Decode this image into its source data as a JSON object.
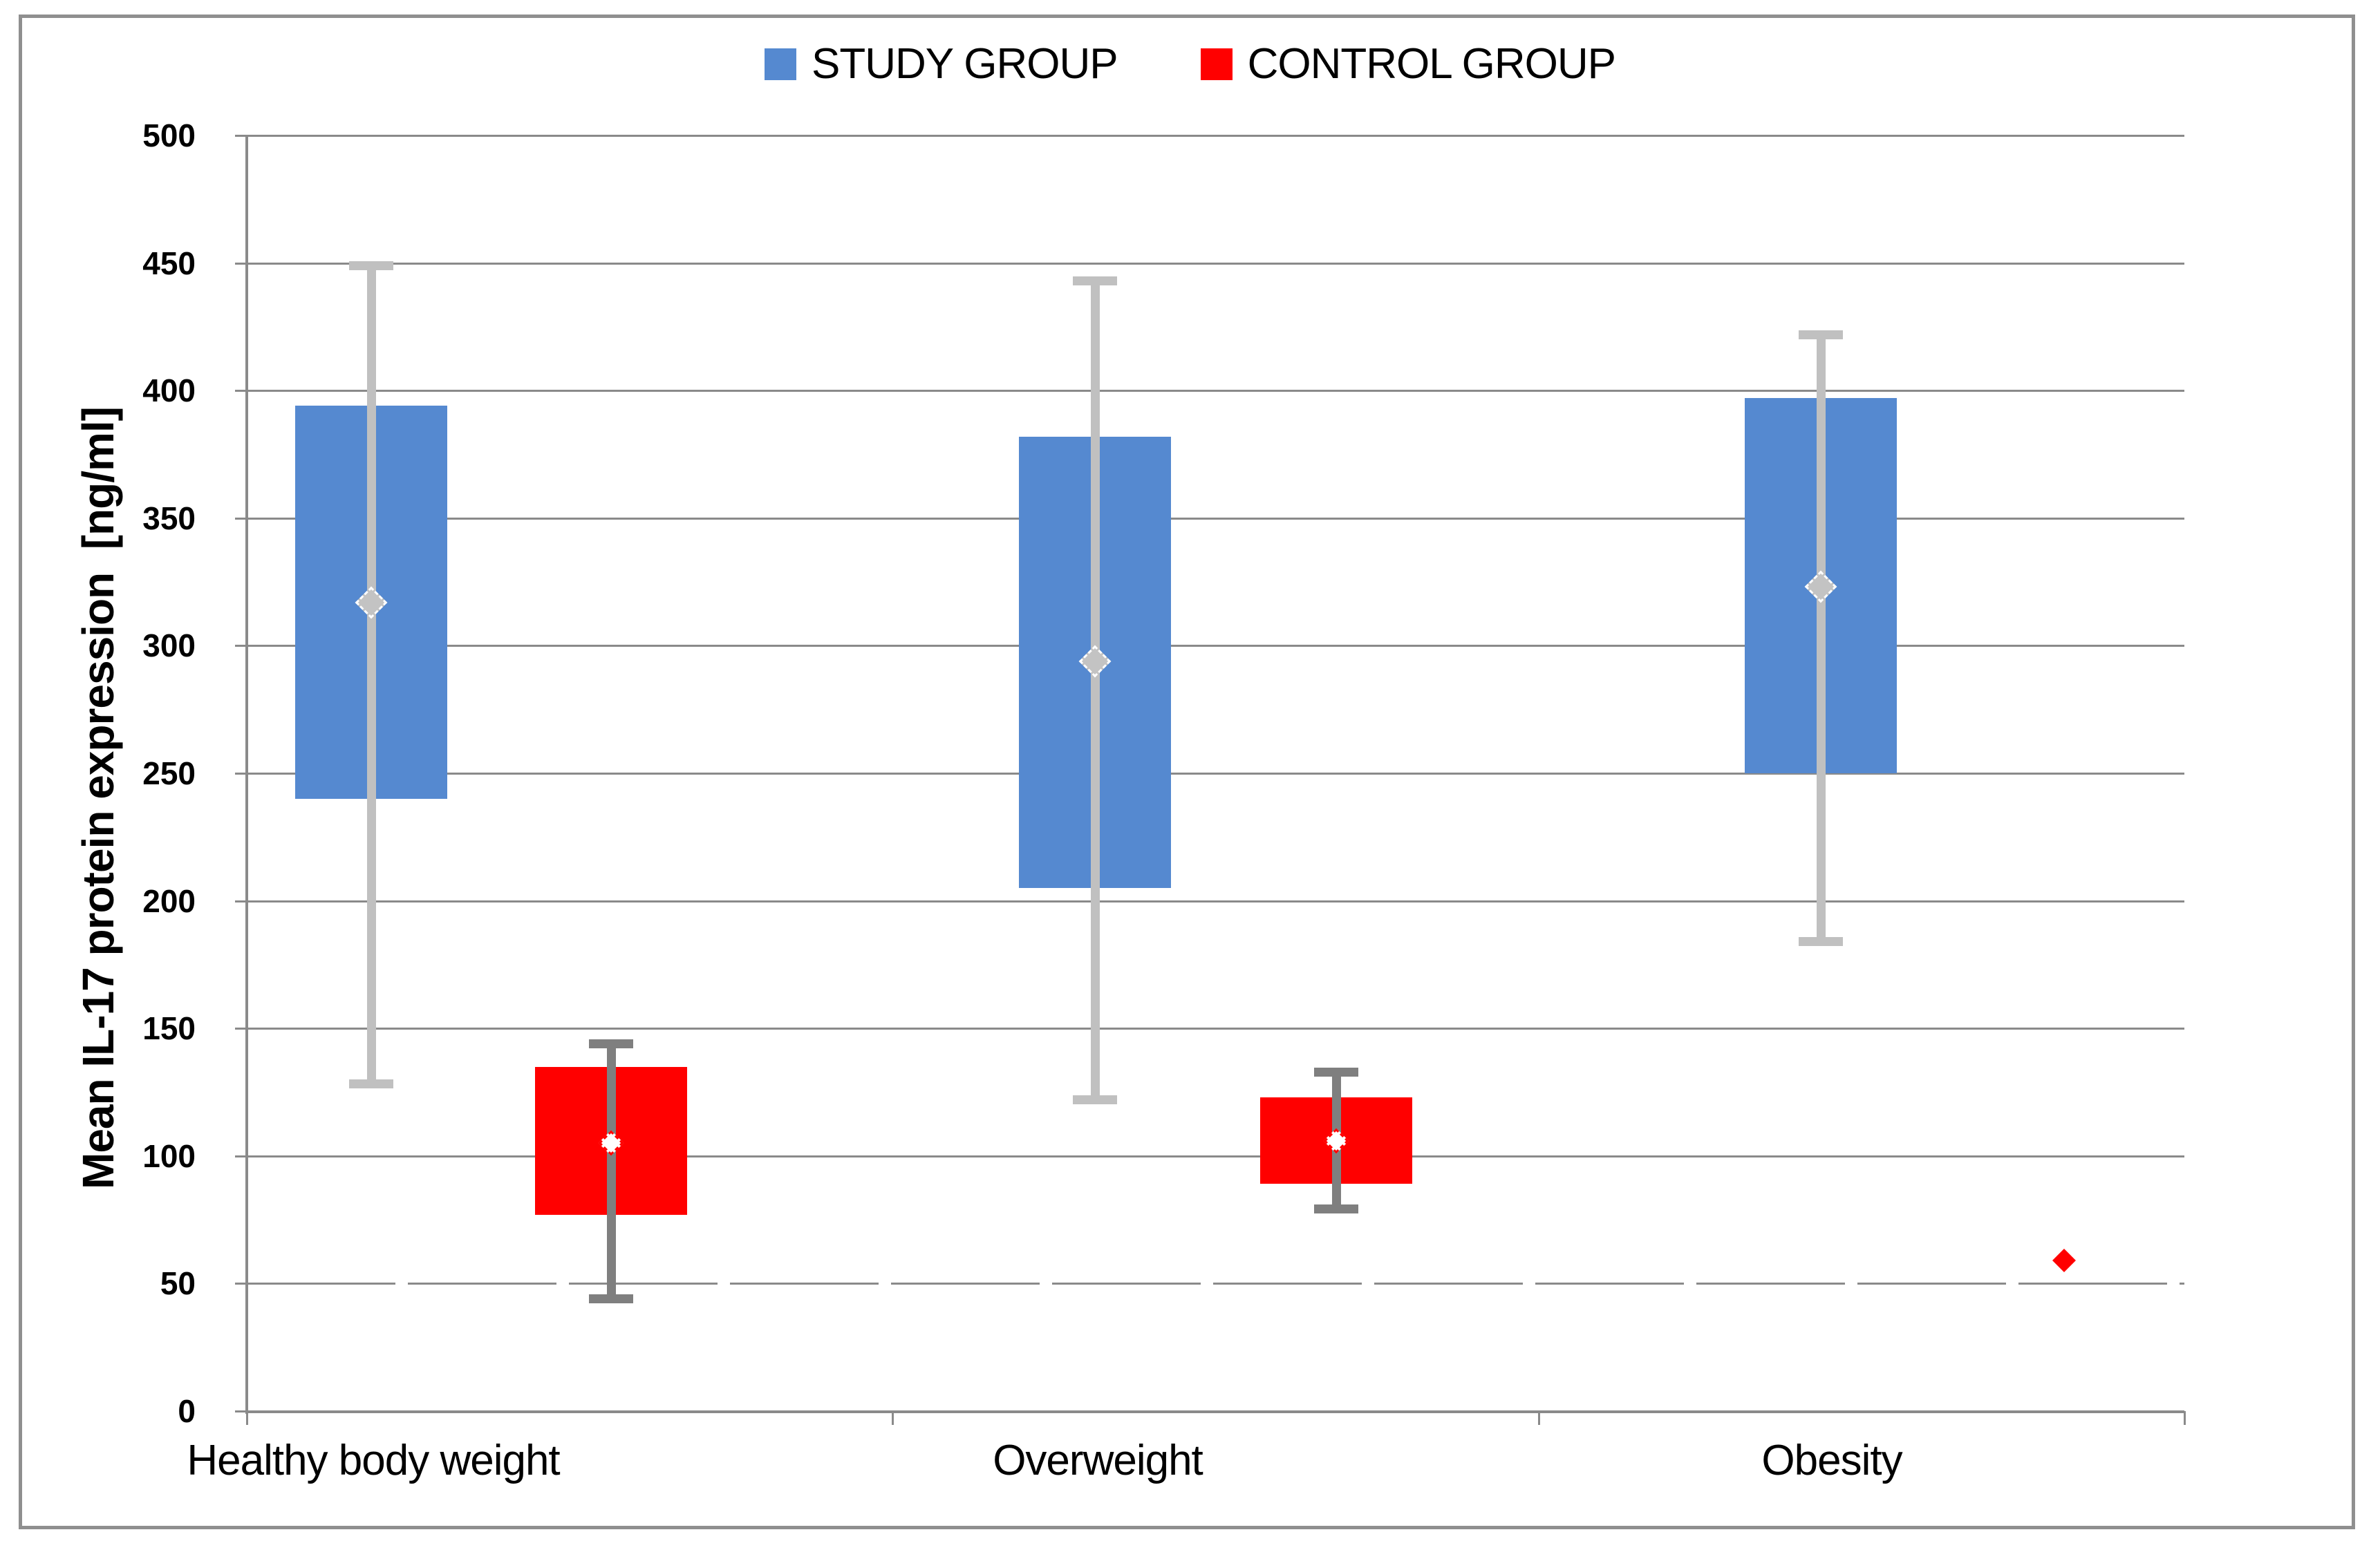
{
  "legend": {
    "items": [
      {
        "label": "STUDY GROUP",
        "color": "#5589d0"
      },
      {
        "label": "CONTROL GROUP",
        "color": "#ff0000"
      }
    ]
  },
  "y_axis": {
    "title": "Mean IL-17 protein expression  [ng/ml]",
    "min": 0,
    "max": 500,
    "step": 50,
    "tick_labels": [
      "500",
      "450",
      "400",
      "350",
      "300",
      "250",
      "200",
      "150",
      "100",
      "50",
      "0"
    ],
    "dashed_gridline_value": 50
  },
  "x_axis": {
    "categories": [
      "Healthy body weight",
      "Overweight",
      "Obesity"
    ]
  },
  "chart_data": {
    "type": "box",
    "title": "",
    "ylabel": "Mean IL-17 protein expression [ng/ml]",
    "ylim": [
      0,
      500
    ],
    "grid": true,
    "legend_position": "top-center",
    "categories": [
      "Healthy body weight",
      "Overweight",
      "Obesity"
    ],
    "series": [
      {
        "name": "STUDY GROUP",
        "box_color": "#5589d0",
        "whisker_color": "#c0c0c0",
        "mean_marker": "gray diamond with dashed white outline",
        "boxes": [
          {
            "category": "Healthy body weight",
            "box_low": 240,
            "box_high": 394,
            "mean": 317,
            "whisker_low": 128,
            "whisker_high": 449
          },
          {
            "category": "Overweight",
            "box_low": 205,
            "box_high": 382,
            "mean": 294,
            "whisker_low": 122,
            "whisker_high": 443
          },
          {
            "category": "Obesity",
            "box_low": 250,
            "box_high": 397,
            "mean": 323,
            "whisker_low": 184,
            "whisker_high": 422
          }
        ]
      },
      {
        "name": "CONTROL GROUP",
        "box_color": "#ff0000",
        "whisker_color": "#7f7f7f",
        "mean_marker": "white diamond with dashed red outline",
        "boxes": [
          {
            "category": "Healthy body weight",
            "box_low": 77,
            "box_high": 135,
            "mean": 105,
            "whisker_low": 44,
            "whisker_high": 144
          },
          {
            "category": "Overweight",
            "box_low": 89,
            "box_high": 123,
            "mean": 106,
            "whisker_low": 79,
            "whisker_high": 133
          },
          {
            "category": "Obesity",
            "point_only": true,
            "mean": 59
          }
        ]
      }
    ]
  },
  "colors": {
    "study_blue": "#5589d0",
    "control_red": "#ff0000",
    "gridline_gray": "#8a8a8a",
    "study_whisker_gray": "#c0c0c0",
    "control_whisker_gray": "#7f7f7f",
    "mean_marker_gray": "#c3c3c3",
    "frame_gray": "#8f8f8f"
  }
}
